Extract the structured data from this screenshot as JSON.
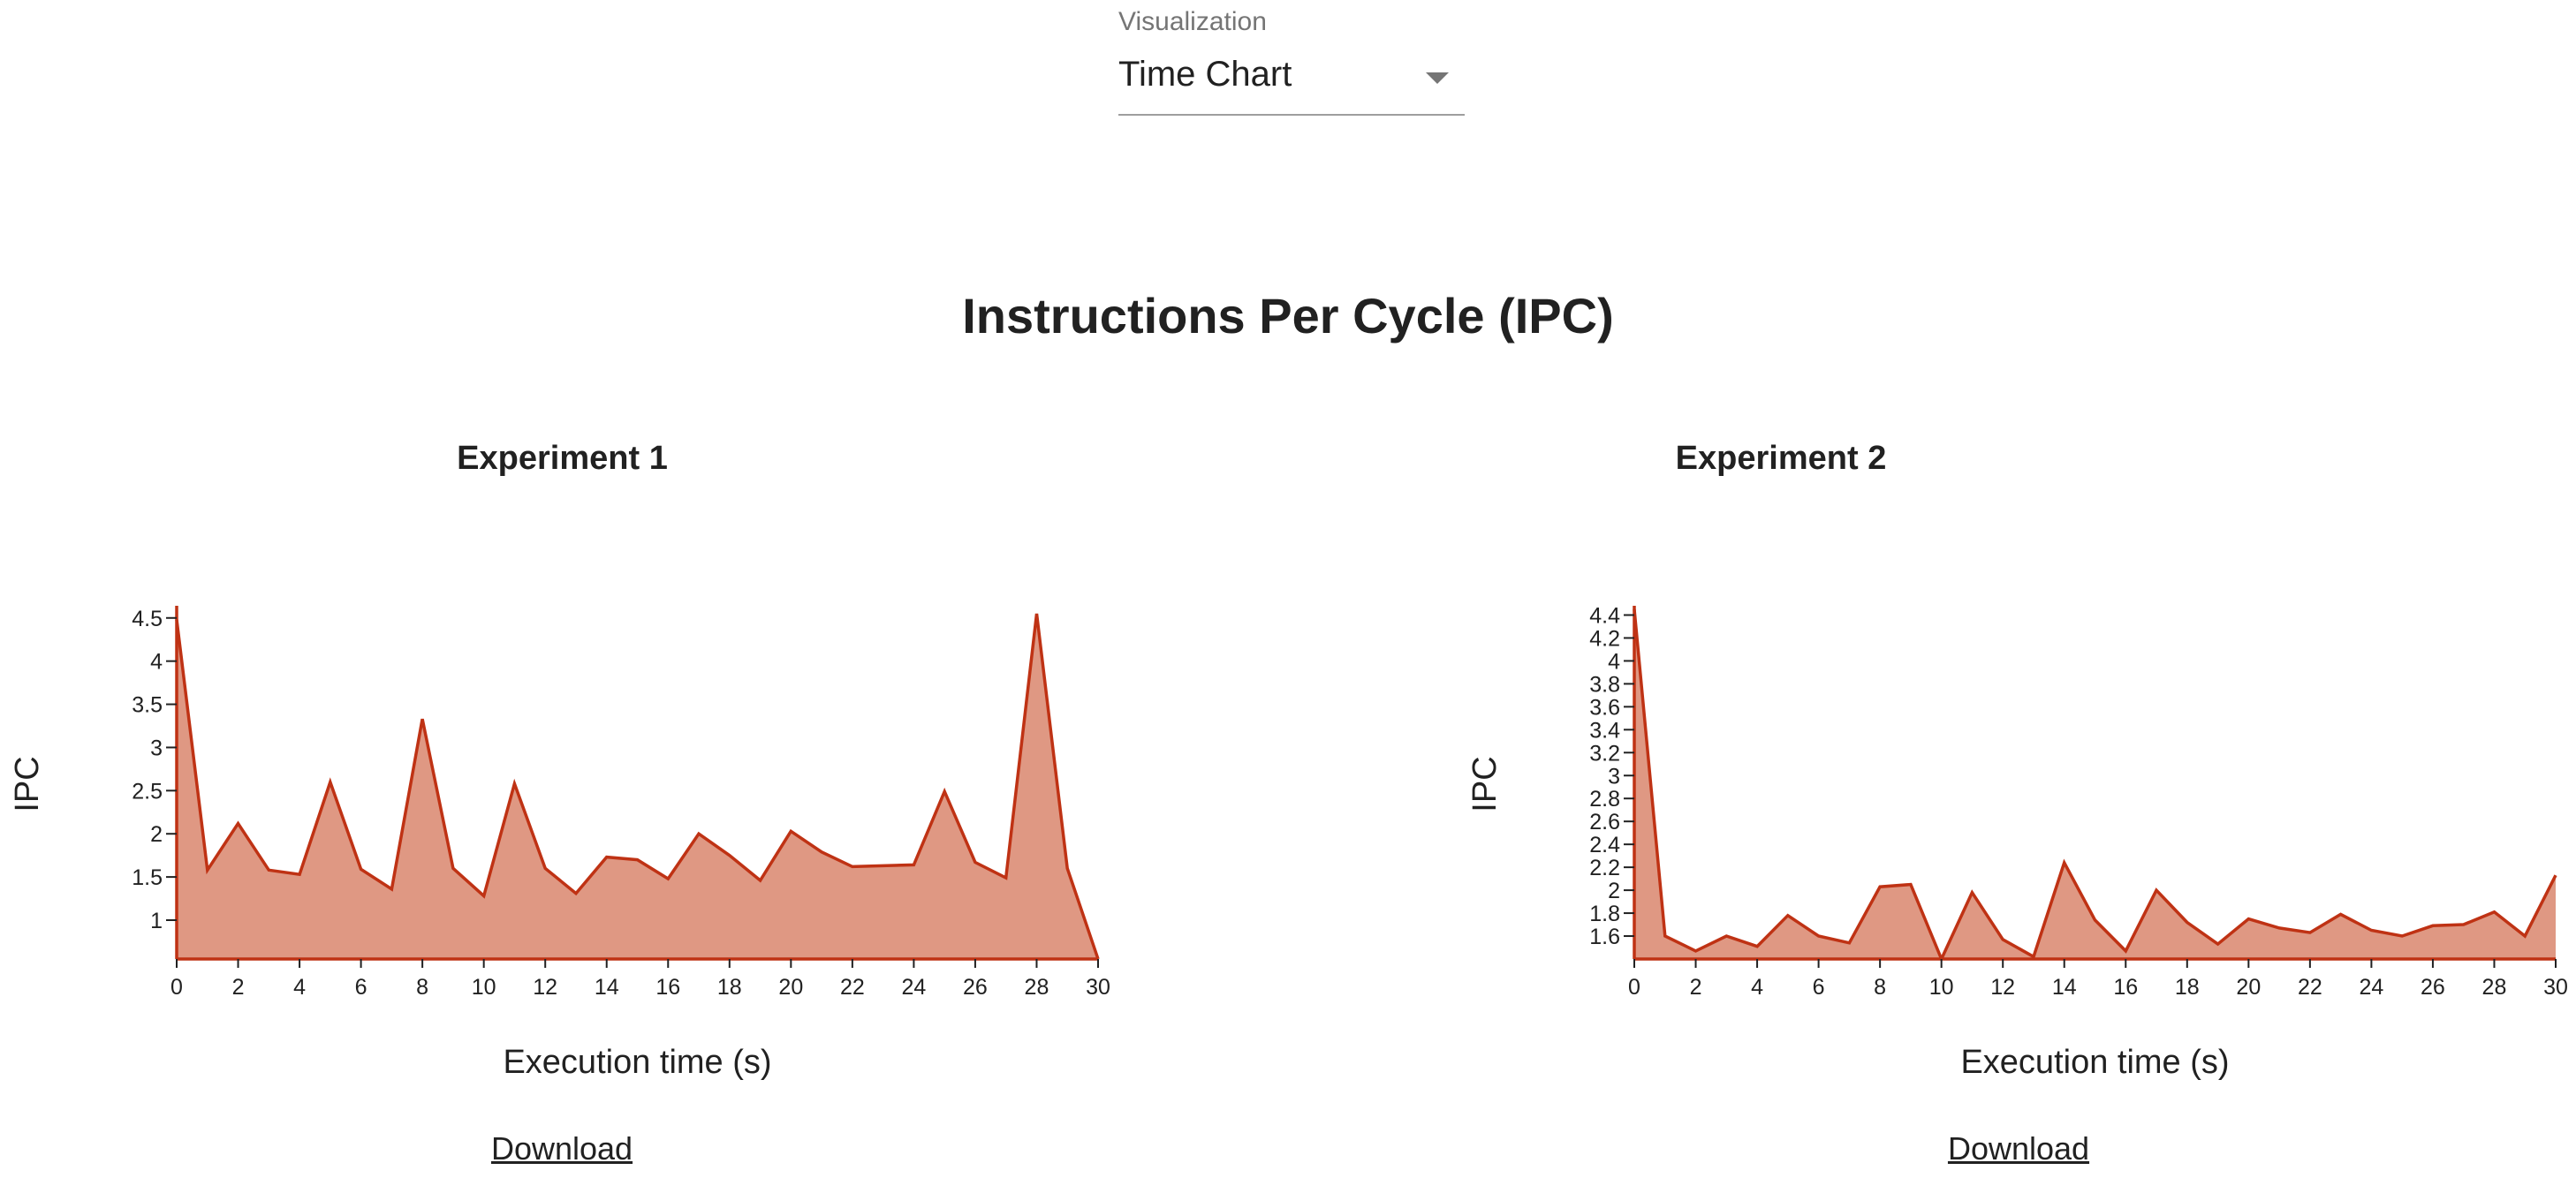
{
  "visualization": {
    "label": "Visualization",
    "value": "Time Chart"
  },
  "page_title": "Instructions Per Cycle (IPC)",
  "download_label": "Download",
  "colors": {
    "area_fill": "#df9883",
    "line": "#bf3214"
  },
  "chart_data": [
    {
      "type": "area",
      "title": "Experiment 1",
      "xlabel": "Execution time (s)",
      "ylabel": "IPC",
      "xlim": [
        0,
        30
      ],
      "ylim": [
        0.55,
        4.6
      ],
      "x": [
        0,
        1,
        2,
        3,
        4,
        5,
        6,
        7,
        8,
        9,
        10,
        11,
        12,
        13,
        14,
        15,
        16,
        17,
        18,
        19,
        20,
        21,
        22,
        23,
        24,
        25,
        26,
        27,
        28,
        29,
        30
      ],
      "values": [
        4.48,
        1.58,
        2.12,
        1.58,
        1.53,
        2.6,
        1.59,
        1.36,
        3.33,
        1.6,
        1.28,
        2.58,
        1.6,
        1.31,
        1.73,
        1.7,
        1.48,
        2.0,
        1.75,
        1.46,
        2.03,
        1.79,
        1.62,
        1.63,
        1.64,
        2.49,
        1.67,
        1.49,
        4.55,
        1.6,
        0.55
      ],
      "xticks": [
        "0",
        "2",
        "4",
        "6",
        "8",
        "10",
        "12",
        "14",
        "16",
        "18",
        "20",
        "22",
        "24",
        "26",
        "28",
        "30"
      ],
      "yticks": [
        "1",
        "1.5",
        "2",
        "2.5",
        "3",
        "3.5",
        "4",
        "4.5"
      ]
    },
    {
      "type": "area",
      "title": "Experiment 2",
      "xlabel": "Execution time (s)",
      "ylabel": "IPC",
      "xlim": [
        0,
        30
      ],
      "ylim": [
        1.4,
        4.45
      ],
      "x": [
        0,
        1,
        2,
        3,
        4,
        5,
        6,
        7,
        8,
        9,
        10,
        11,
        12,
        13,
        14,
        15,
        16,
        17,
        18,
        19,
        20,
        21,
        22,
        23,
        24,
        25,
        26,
        27,
        28,
        29,
        30
      ],
      "values": [
        4.45,
        1.6,
        1.47,
        1.6,
        1.51,
        1.78,
        1.6,
        1.54,
        2.03,
        2.05,
        1.4,
        1.98,
        1.57,
        1.42,
        2.24,
        1.74,
        1.47,
        2.0,
        1.72,
        1.53,
        1.75,
        1.67,
        1.63,
        1.79,
        1.65,
        1.6,
        1.69,
        1.7,
        1.81,
        1.6,
        2.13
      ],
      "xticks": [
        "0",
        "2",
        "4",
        "6",
        "8",
        "10",
        "12",
        "14",
        "16",
        "18",
        "20",
        "22",
        "24",
        "26",
        "28",
        "30"
      ],
      "yticks": [
        "1.6",
        "1.8",
        "2",
        "2.2",
        "2.4",
        "2.6",
        "2.8",
        "3",
        "3.2",
        "3.4",
        "3.6",
        "3.8",
        "4",
        "4.2",
        "4.4"
      ]
    }
  ]
}
